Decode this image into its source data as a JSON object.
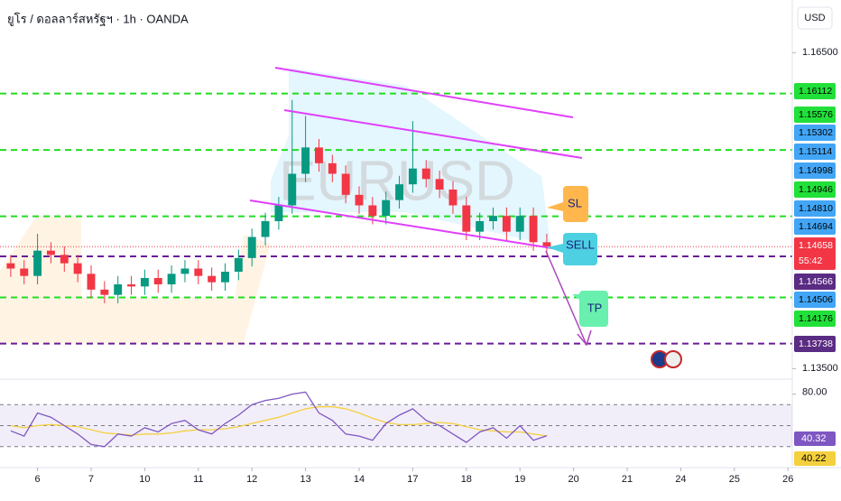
{
  "chart_data": {
    "type": "candlestick",
    "title": "ยูโร / ดอลลาร์สหรัฐฯ · 1h · OANDA",
    "currency": "USD",
    "watermark": "EURUSD",
    "countdown": "55:42",
    "xlim": [
      -0.7,
      14.08
    ],
    "ylim": [
      1.134,
      1.17
    ],
    "xticks": [
      {
        "value": 0,
        "label": "6"
      },
      {
        "value": 1,
        "label": "7"
      },
      {
        "value": 2,
        "label": "10"
      },
      {
        "value": 3,
        "label": "11"
      },
      {
        "value": 4,
        "label": "12"
      },
      {
        "value": 5,
        "label": "13"
      },
      {
        "value": 6,
        "label": "14"
      },
      {
        "value": 7,
        "label": "17"
      },
      {
        "value": 8,
        "label": "18"
      },
      {
        "value": 9,
        "label": "19"
      },
      {
        "value": 10,
        "label": "20"
      },
      {
        "value": 11,
        "label": "21"
      },
      {
        "value": 12,
        "label": "24"
      },
      {
        "value": 13,
        "label": "25"
      },
      {
        "value": 14,
        "label": "26"
      }
    ],
    "yticks": [
      {
        "value": 1.165,
        "label": "1.16500"
      },
      {
        "value": 1.135,
        "label": "1.13500"
      }
    ],
    "up_color": "#089981",
    "down_color": "#f23645",
    "candles": {
      "x": [
        -0.5,
        -0.25,
        0,
        0.25,
        0.5,
        0.75,
        1,
        1.25,
        1.5,
        1.75,
        2,
        2.25,
        2.5,
        2.75,
        3,
        3.25,
        3.5,
        3.75,
        4,
        4.25,
        4.5,
        4.75,
        5,
        5.25,
        5.5,
        5.75,
        6,
        6.25,
        6.5,
        6.75,
        7,
        7.25,
        7.5,
        7.75,
        8,
        8.25,
        8.5,
        8.75,
        9,
        9.25,
        9.5
      ],
      "open": [
        1.145,
        1.1445,
        1.1438,
        1.1462,
        1.1458,
        1.145,
        1.144,
        1.1425,
        1.142,
        1.143,
        1.1428,
        1.1436,
        1.143,
        1.144,
        1.1445,
        1.1438,
        1.1432,
        1.1442,
        1.1455,
        1.1475,
        1.149,
        1.1505,
        1.1535,
        1.156,
        1.1545,
        1.1535,
        1.1515,
        1.1505,
        1.1495,
        1.151,
        1.1525,
        1.154,
        1.153,
        1.152,
        1.1505,
        1.148,
        1.149,
        1.1495,
        1.148,
        1.1495,
        1.147
      ],
      "high": [
        1.1458,
        1.1453,
        1.1478,
        1.147,
        1.1466,
        1.1458,
        1.1448,
        1.1433,
        1.1438,
        1.1438,
        1.1444,
        1.1444,
        1.1448,
        1.1453,
        1.1453,
        1.1446,
        1.145,
        1.1463,
        1.1483,
        1.1498,
        1.1513,
        1.1605,
        1.159,
        1.1568,
        1.1553,
        1.1543,
        1.1523,
        1.1513,
        1.1518,
        1.1533,
        1.1585,
        1.1548,
        1.1538,
        1.1528,
        1.1513,
        1.1498,
        1.1503,
        1.1503,
        1.1503,
        1.1503,
        1.1478
      ],
      "low": [
        1.1437,
        1.143,
        1.143,
        1.145,
        1.1442,
        1.1432,
        1.1417,
        1.1412,
        1.1412,
        1.142,
        1.142,
        1.1422,
        1.1422,
        1.1432,
        1.143,
        1.1424,
        1.1424,
        1.1434,
        1.1447,
        1.1467,
        1.1482,
        1.1497,
        1.1527,
        1.1537,
        1.1527,
        1.1507,
        1.1497,
        1.1487,
        1.1487,
        1.1502,
        1.1517,
        1.1522,
        1.1512,
        1.1497,
        1.1472,
        1.1472,
        1.1482,
        1.1472,
        1.1472,
        1.1462,
        1.1458
      ],
      "close": [
        1.1445,
        1.1438,
        1.1462,
        1.1458,
        1.145,
        1.144,
        1.1425,
        1.142,
        1.143,
        1.1428,
        1.1436,
        1.143,
        1.144,
        1.1445,
        1.1438,
        1.1432,
        1.1442,
        1.1455,
        1.1475,
        1.149,
        1.1505,
        1.1535,
        1.156,
        1.1545,
        1.1535,
        1.1515,
        1.1505,
        1.1495,
        1.151,
        1.1525,
        1.154,
        1.153,
        1.152,
        1.1505,
        1.148,
        1.149,
        1.1495,
        1.148,
        1.1495,
        1.147,
        1.1466
      ]
    },
    "levels": [
      {
        "value": 1.16112,
        "color": "#22dd22"
      },
      {
        "value": 1.15576,
        "color": "#22dd22"
      },
      {
        "value": 1.14946,
        "color": "#22dd22"
      },
      {
        "value": 1.14176,
        "color": "#22dd22"
      },
      {
        "value": 1.14566,
        "color": "#6a1b9a"
      },
      {
        "value": 1.13738,
        "color": "#6a1b9a"
      }
    ],
    "current_price": {
      "value": 1.14658,
      "color": "#f23645"
    },
    "price_labels": [
      {
        "value": 1.16112,
        "color": "#22e03a",
        "text_color": "#000000"
      },
      {
        "value": 1.15576,
        "color": "#22e03a",
        "text_color": "#000000"
      },
      {
        "value": 1.15302,
        "color": "#42a5f5",
        "text_color": "#000000"
      },
      {
        "value": 1.15114,
        "color": "#42a5f5",
        "text_color": "#000000"
      },
      {
        "value": 1.14998,
        "color": "#42a5f5",
        "text_color": "#000000"
      },
      {
        "value": 1.14946,
        "color": "#22e03a",
        "text_color": "#000000"
      },
      {
        "value": 1.1481,
        "label": "1.14810",
        "color": "#42a5f5",
        "text_color": "#000000"
      },
      {
        "value": 1.14694,
        "color": "#42a5f5",
        "text_color": "#000000"
      },
      {
        "value": 1.14658,
        "color": "#f23645",
        "text_color": "#ffffff"
      },
      {
        "value": 1.14566,
        "color": "#5b2c83",
        "text_color": "#ffffff"
      },
      {
        "value": 1.14506,
        "color": "#42a5f5",
        "text_color": "#000000"
      },
      {
        "value": 1.14176,
        "color": "#22e03a",
        "text_color": "#000000"
      },
      {
        "value": 1.13738,
        "color": "#5b2c83",
        "text_color": "#ffffff"
      }
    ],
    "annotations": {
      "sl": "SL",
      "sell": "SELL",
      "tp": "TP"
    },
    "rsi": {
      "ylim": [
        10,
        90
      ],
      "yticks": [
        {
          "value": 80,
          "label": "80.00"
        }
      ],
      "levels": [
        70,
        50,
        30
      ],
      "color": "#7e57c2",
      "ma_color": "#f4d03f",
      "values": [
        45,
        40,
        62,
        58,
        50,
        42,
        32,
        30,
        42,
        40,
        48,
        44,
        52,
        55,
        46,
        42,
        52,
        60,
        70,
        74,
        76,
        80,
        82,
        62,
        55,
        42,
        40,
        36,
        52,
        60,
        66,
        55,
        50,
        42,
        34,
        44,
        48,
        38,
        50,
        36,
        40.32
      ],
      "ma": [
        50,
        48,
        50,
        51,
        50,
        49,
        46,
        43,
        42,
        41,
        42,
        42,
        43,
        45,
        46,
        46,
        47,
        49,
        52,
        55,
        58,
        62,
        66,
        68,
        68,
        66,
        62,
        57,
        53,
        51,
        51,
        52,
        53,
        52,
        49,
        46,
        45,
        44,
        44,
        42,
        40.22
      ]
    }
  }
}
